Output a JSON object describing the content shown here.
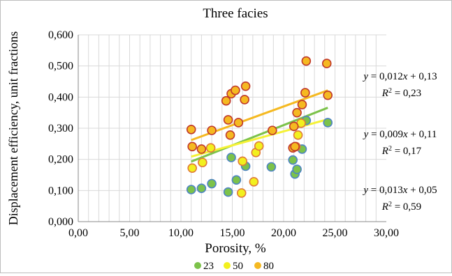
{
  "chart_data": {
    "type": "scatter",
    "title": "Three facies",
    "xlabel": "Porosity, %",
    "ylabel": "Displacement efficiency, unit fractions",
    "xlim": [
      0,
      30
    ],
    "ylim": [
      0,
      0.6
    ],
    "x_ticks": [
      "0,00",
      "5,00",
      "10,00",
      "15,00",
      "20,00",
      "25,00",
      "30,00"
    ],
    "y_ticks": [
      "0,000",
      "0,100",
      "0,200",
      "0,300",
      "0,400",
      "0,500",
      "0,600"
    ],
    "grid": true,
    "legend_position": "bottom",
    "series": [
      {
        "name": "23",
        "color": "#7cc24a",
        "edge": "#4e84c4",
        "points": [
          [
            11.0,
            0.103
          ],
          [
            12.0,
            0.107
          ],
          [
            13.0,
            0.122
          ],
          [
            14.6,
            0.095
          ],
          [
            14.9,
            0.206
          ],
          [
            15.4,
            0.134
          ],
          [
            16.3,
            0.178
          ],
          [
            18.8,
            0.176
          ],
          [
            20.9,
            0.198
          ],
          [
            21.1,
            0.153
          ],
          [
            21.3,
            0.168
          ],
          [
            21.8,
            0.233
          ],
          [
            22.2,
            0.325
          ],
          [
            24.3,
            0.318
          ]
        ],
        "trend": {
          "slope": 0.013,
          "intercept": 0.05,
          "x_range": [
            11.0,
            24.3
          ]
        },
        "equation": {
          "y": "y",
          "mid": " = 0,013",
          "x": "x",
          "tail": " + 0,05"
        },
        "r2": {
          "r": "R",
          "sup": "2",
          "tail": " = 0,59"
        }
      },
      {
        "name": "50",
        "color": "#f2f01e",
        "edge": "#e07b39",
        "points": [
          [
            11.1,
            0.172
          ],
          [
            12.1,
            0.19
          ],
          [
            12.9,
            0.237
          ],
          [
            15.9,
            0.092
          ],
          [
            16.0,
            0.194
          ],
          [
            17.1,
            0.128
          ],
          [
            17.3,
            0.222
          ],
          [
            17.6,
            0.243
          ],
          [
            21.2,
            0.241
          ],
          [
            21.4,
            0.278
          ],
          [
            21.7,
            0.316
          ]
        ],
        "trend": {
          "slope": 0.009,
          "intercept": 0.11,
          "x_range": [
            11.0,
            24.3
          ]
        },
        "equation": {
          "y": "y",
          "mid": " = 0,009",
          "x": "x",
          "tail": " + 0,11"
        },
        "r2": {
          "r": "R",
          "sup": "2",
          "tail": " = 0,17"
        }
      },
      {
        "name": "80",
        "color": "#f5b921",
        "edge": "#c0392b",
        "points": [
          [
            11.0,
            0.296
          ],
          [
            11.1,
            0.241
          ],
          [
            12.0,
            0.233
          ],
          [
            13.0,
            0.293
          ],
          [
            14.4,
            0.388
          ],
          [
            14.6,
            0.327
          ],
          [
            14.8,
            0.278
          ],
          [
            14.9,
            0.411
          ],
          [
            15.3,
            0.422
          ],
          [
            15.6,
            0.318
          ],
          [
            16.2,
            0.392
          ],
          [
            16.3,
            0.435
          ],
          [
            18.9,
            0.293
          ],
          [
            20.9,
            0.237
          ],
          [
            21.0,
            0.306
          ],
          [
            21.1,
            0.241
          ],
          [
            21.3,
            0.35
          ],
          [
            21.8,
            0.376
          ],
          [
            22.1,
            0.414
          ],
          [
            22.2,
            0.516
          ],
          [
            24.2,
            0.508
          ],
          [
            24.3,
            0.406
          ]
        ],
        "trend": {
          "slope": 0.012,
          "intercept": 0.13,
          "x_range": [
            11.0,
            24.3
          ]
        },
        "equation": {
          "y": "y",
          "mid": " = 0,012",
          "x": "x",
          "tail": " + 0,13"
        },
        "r2": {
          "r": "R",
          "sup": "2",
          "tail": " = 0,23"
        }
      }
    ]
  }
}
